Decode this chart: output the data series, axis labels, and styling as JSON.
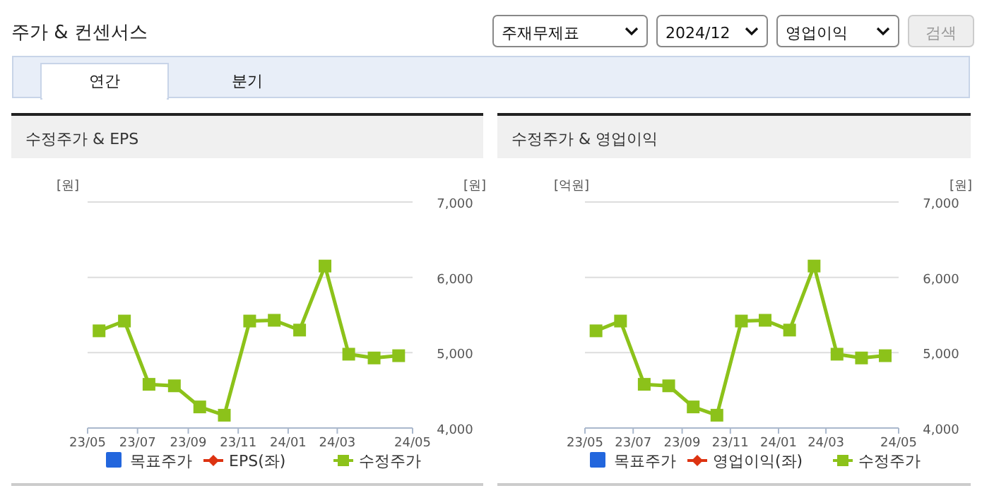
{
  "chart_data": [
    {
      "type": "line",
      "title": "수정주가 & EPS",
      "ylabel": "[원]",
      "y2label": "[원]",
      "annotations": [
        "주가 & 컨센서스",
        "주재무제표",
        "2024/12",
        "영업이익",
        "검색",
        "연간",
        "분기"
      ],
      "x": [
        "2023-05-15",
        "2023-06-15",
        "2023-07-15",
        "2023-08-15",
        "2023-09-15",
        "2023-10-15",
        "2023-11-15",
        "2023-12-15",
        "2024-01-15",
        "2024-02-15",
        "2024-03-15",
        "2024-04-15",
        "2024-05-15"
      ],
      "xlim": [
        "2023-05-01",
        "2024-06-01"
      ],
      "xticks": [
        {
          "value": "2023-05-01",
          "label": "23/05"
        },
        {
          "value": "2023-07-01",
          "label": "23/07"
        },
        {
          "value": "2023-09-01",
          "label": "23/09"
        },
        {
          "value": "2023-11-01",
          "label": "23/11"
        },
        {
          "value": "2024-01-01",
          "label": "24/01"
        },
        {
          "value": "2024-03-01",
          "label": "24/03"
        },
        {
          "value": "2024-06-01",
          "label": "24/05"
        }
      ],
      "y2lim": [
        4000,
        7000
      ],
      "y2ticks": [
        {
          "value": 4000,
          "label": "4,000"
        },
        {
          "value": 5000,
          "label": "5,000"
        },
        {
          "value": 6000,
          "label": "6,000"
        },
        {
          "value": 7000,
          "label": "7,000"
        }
      ],
      "grid": "y",
      "legend": "bottom",
      "tick_labels": "x",
      "marker": "square",
      "series": [
        {
          "name": "목표주가",
          "type": "bar",
          "color": "#2266dd",
          "axis": "y2",
          "values": [
            null,
            null,
            null,
            null,
            null,
            null,
            null,
            null,
            null,
            null,
            null,
            null,
            null
          ]
        },
        {
          "name": "EPS(좌)",
          "color": "#dd3311",
          "marker": "diamond",
          "values": [
            null,
            null,
            null,
            null,
            null,
            null,
            null,
            null,
            null,
            null,
            null,
            null,
            null
          ]
        },
        {
          "name": "수정주가",
          "color": "#8cc21a",
          "axis": "y2",
          "values": [
            5290,
            5420,
            4580,
            4560,
            4280,
            4170,
            5420,
            5430,
            5300,
            6150,
            4980,
            4930,
            4960
          ]
        }
      ]
    },
    {
      "type": "line",
      "title": "수정주가 & 영업이익",
      "ylabel": "[억원]",
      "y2label": "[원]",
      "x": [
        "2023-05-15",
        "2023-06-15",
        "2023-07-15",
        "2023-08-15",
        "2023-09-15",
        "2023-10-15",
        "2023-11-15",
        "2023-12-15",
        "2024-01-15",
        "2024-02-15",
        "2024-03-15",
        "2024-04-15",
        "2024-05-15"
      ],
      "xlim": [
        "2023-05-01",
        "2024-06-01"
      ],
      "xticks": [
        {
          "value": "2023-05-01",
          "label": "23/05"
        },
        {
          "value": "2023-07-01",
          "label": "23/07"
        },
        {
          "value": "2023-09-01",
          "label": "23/09"
        },
        {
          "value": "2023-11-01",
          "label": "23/11"
        },
        {
          "value": "2024-01-01",
          "label": "24/01"
        },
        {
          "value": "2024-03-01",
          "label": "24/03"
        },
        {
          "value": "2024-06-01",
          "label": "24/05"
        }
      ],
      "y2lim": [
        4000,
        7000
      ],
      "y2ticks": [
        {
          "value": 4000,
          "label": "4,000"
        },
        {
          "value": 5000,
          "label": "5,000"
        },
        {
          "value": 6000,
          "label": "6,000"
        },
        {
          "value": 7000,
          "label": "7,000"
        }
      ],
      "grid": "y",
      "legend": "bottom",
      "tick_labels": "x",
      "marker": "square",
      "series": [
        {
          "name": "목표주가",
          "type": "bar",
          "color": "#2266dd",
          "axis": "y2",
          "values": [
            null,
            null,
            null,
            null,
            null,
            null,
            null,
            null,
            null,
            null,
            null,
            null,
            null
          ]
        },
        {
          "name": "영업이익(좌)",
          "color": "#dd3311",
          "marker": "diamond",
          "values": [
            null,
            null,
            null,
            null,
            null,
            null,
            null,
            null,
            null,
            null,
            null,
            null,
            null
          ]
        },
        {
          "name": "수정주가",
          "color": "#8cc21a",
          "axis": "y2",
          "values": [
            5290,
            5420,
            4580,
            4560,
            4280,
            4170,
            5420,
            5430,
            5300,
            6150,
            4980,
            4930,
            4960
          ]
        }
      ]
    }
  ]
}
